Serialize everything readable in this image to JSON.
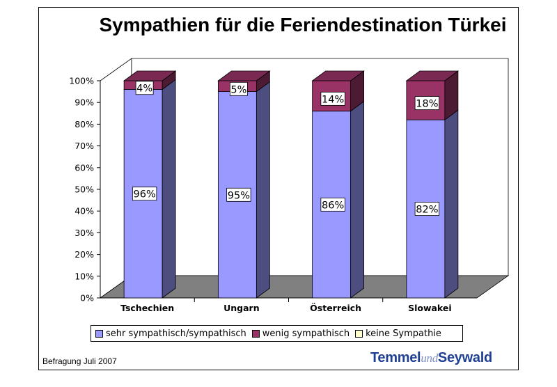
{
  "title": "Sympathien für die Feriendestination Türkei",
  "footnote": "Befragung Juli 2007",
  "logo": {
    "part1": "Temmel",
    "part2": "und",
    "part3": "Seywald"
  },
  "colors": {
    "sehr_sympathisch": "#9999ff",
    "wenig_sympathisch": "#993366",
    "keine_sympathie": "#ffffcc",
    "floor": "#808080",
    "side_blue": "#4d4d80",
    "top_blue": "#7a7acc",
    "side_red": "#4d1a33",
    "top_red": "#7a2952"
  },
  "chart_data": {
    "type": "bar",
    "stacked": true,
    "three_d": true,
    "title": "Sympathien für die Feriendestination Türkei",
    "categories": [
      "Tschechien",
      "Ungarn",
      "Österreich",
      "Slowakei"
    ],
    "series": [
      {
        "name": "sehr sympathisch/sympathisch",
        "values": [
          96,
          95,
          86,
          82
        ],
        "labels": [
          "96%",
          "95%",
          "86%",
          "82%"
        ]
      },
      {
        "name": "wenig sympathisch",
        "values": [
          4,
          5,
          14,
          18
        ],
        "labels": [
          "4%",
          "5%",
          "14%",
          "18%"
        ]
      },
      {
        "name": "keine Sympathie",
        "values": [
          0,
          0,
          0,
          0
        ]
      }
    ],
    "yticks": [
      "0%",
      "10%",
      "20%",
      "30%",
      "40%",
      "50%",
      "60%",
      "70%",
      "80%",
      "90%",
      "100%"
    ],
    "ylim": [
      0,
      100
    ],
    "legend_position": "bottom"
  }
}
